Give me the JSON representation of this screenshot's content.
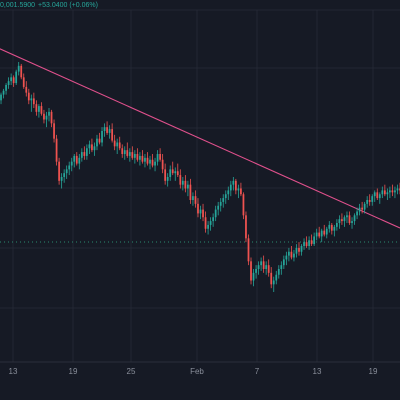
{
  "header": {
    "ohlc_fragment": "0,001.5900",
    "change_text": "+53.0400 (+0.06%)"
  },
  "colors": {
    "background": "#161a25",
    "grid": "#232733",
    "up": "#26a69a",
    "down": "#ef5350",
    "trendline": "#e0508c",
    "dotted_price_line": "#2a8a6e",
    "axis_text": "#8a8f9b",
    "axis_separator": "#2b2f3a"
  },
  "chart_data": {
    "type": "candlestick",
    "x_ticks": [
      "13",
      "19",
      "25",
      "Feb",
      "7",
      "13",
      "19"
    ],
    "grid": true,
    "trendline": {
      "start_index": 0,
      "end_index": 159,
      "start_price": 100.0,
      "end_price": 55.0
    },
    "last_price_marker": {
      "dotted": true,
      "price": 47.0
    },
    "candles": [
      [
        93,
        96,
        90,
        94
      ],
      [
        94,
        98,
        92,
        97
      ],
      [
        97,
        100,
        95,
        99
      ],
      [
        99,
        103,
        97,
        102
      ],
      [
        102,
        106,
        100,
        104
      ],
      [
        104,
        108,
        102,
        106
      ],
      [
        106,
        107,
        101,
        103
      ],
      [
        103,
        110,
        102,
        109
      ],
      [
        109,
        114,
        107,
        112
      ],
      [
        112,
        113,
        105,
        106
      ],
      [
        106,
        108,
        100,
        101
      ],
      [
        101,
        104,
        96,
        98
      ],
      [
        98,
        100,
        92,
        94
      ],
      [
        94,
        97,
        88,
        95
      ],
      [
        95,
        98,
        90,
        92
      ],
      [
        92,
        94,
        86,
        88
      ],
      [
        88,
        92,
        85,
        91
      ],
      [
        91,
        93,
        86,
        87
      ],
      [
        87,
        89,
        82,
        84
      ],
      [
        84,
        88,
        80,
        86
      ],
      [
        86,
        90,
        83,
        88
      ],
      [
        88,
        89,
        80,
        82
      ],
      [
        82,
        84,
        72,
        74
      ],
      [
        74,
        76,
        60,
        62
      ],
      [
        62,
        64,
        50,
        52
      ],
      [
        52,
        56,
        48,
        54
      ],
      [
        54,
        58,
        51,
        56
      ],
      [
        56,
        60,
        53,
        58
      ],
      [
        58,
        62,
        55,
        60
      ],
      [
        60,
        64,
        57,
        62
      ],
      [
        62,
        66,
        59,
        65
      ],
      [
        65,
        67,
        60,
        61
      ],
      [
        61,
        66,
        58,
        64
      ],
      [
        64,
        69,
        62,
        67
      ],
      [
        67,
        70,
        63,
        65
      ],
      [
        65,
        71,
        63,
        69
      ],
      [
        69,
        73,
        66,
        71
      ],
      [
        71,
        74,
        67,
        68
      ],
      [
        68,
        72,
        65,
        70
      ],
      [
        70,
        76,
        68,
        74
      ],
      [
        74,
        77,
        71,
        72
      ],
      [
        72,
        80,
        70,
        78
      ],
      [
        78,
        82,
        75,
        80
      ],
      [
        80,
        83,
        76,
        77
      ],
      [
        77,
        81,
        74,
        79
      ],
      [
        79,
        82,
        72,
        73
      ],
      [
        73,
        76,
        68,
        70
      ],
      [
        70,
        74,
        66,
        72
      ],
      [
        72,
        75,
        68,
        69
      ],
      [
        69,
        71,
        64,
        66
      ],
      [
        66,
        70,
        63,
        68
      ],
      [
        68,
        72,
        64,
        65
      ],
      [
        65,
        69,
        62,
        67
      ],
      [
        67,
        70,
        63,
        64
      ],
      [
        64,
        68,
        61,
        66
      ],
      [
        66,
        69,
        62,
        63
      ],
      [
        63,
        67,
        60,
        65
      ],
      [
        65,
        68,
        61,
        62
      ],
      [
        62,
        66,
        59,
        64
      ],
      [
        64,
        67,
        60,
        61
      ],
      [
        61,
        65,
        58,
        63
      ],
      [
        63,
        66,
        59,
        60
      ],
      [
        60,
        64,
        57,
        62
      ],
      [
        62,
        68,
        60,
        66
      ],
      [
        66,
        69,
        62,
        63
      ],
      [
        63,
        66,
        56,
        58
      ],
      [
        58,
        61,
        50,
        52
      ],
      [
        52,
        56,
        49,
        54
      ],
      [
        54,
        60,
        52,
        58
      ],
      [
        58,
        62,
        55,
        56
      ],
      [
        56,
        59,
        52,
        57
      ],
      [
        57,
        61,
        54,
        55
      ],
      [
        55,
        58,
        48,
        50
      ],
      [
        50,
        54,
        47,
        52
      ],
      [
        52,
        55,
        46,
        48
      ],
      [
        48,
        52,
        44,
        50
      ],
      [
        50,
        53,
        40,
        42
      ],
      [
        42,
        46,
        39,
        44
      ],
      [
        44,
        47,
        38,
        40
      ],
      [
        40,
        43,
        33,
        35
      ],
      [
        35,
        39,
        32,
        37
      ],
      [
        37,
        40,
        31,
        33
      ],
      [
        33,
        36,
        25,
        27
      ],
      [
        27,
        31,
        24,
        29
      ],
      [
        29,
        33,
        26,
        31
      ],
      [
        31,
        35,
        28,
        33
      ],
      [
        33,
        39,
        31,
        37
      ],
      [
        37,
        41,
        34,
        39
      ],
      [
        39,
        43,
        36,
        41
      ],
      [
        41,
        45,
        38,
        43
      ],
      [
        43,
        47,
        40,
        45
      ],
      [
        45,
        49,
        42,
        47
      ],
      [
        47,
        52,
        44,
        50
      ],
      [
        50,
        54,
        47,
        52
      ],
      [
        52,
        53,
        45,
        47
      ],
      [
        47,
        50,
        43,
        48
      ],
      [
        48,
        51,
        44,
        45
      ],
      [
        45,
        46,
        32,
        34
      ],
      [
        34,
        36,
        20,
        22
      ],
      [
        22,
        24,
        8,
        10
      ],
      [
        10,
        12,
        -2,
        0
      ],
      [
        0,
        6,
        -3,
        4
      ],
      [
        4,
        8,
        1,
        6
      ],
      [
        6,
        10,
        3,
        8
      ],
      [
        8,
        12,
        5,
        10
      ],
      [
        10,
        13,
        4,
        6
      ],
      [
        6,
        10,
        3,
        8
      ],
      [
        8,
        11,
        2,
        4
      ],
      [
        4,
        7,
        -4,
        -2
      ],
      [
        -2,
        2,
        -6,
        0
      ],
      [
        0,
        5,
        -2,
        3
      ],
      [
        3,
        8,
        1,
        6
      ],
      [
        6,
        10,
        3,
        8
      ],
      [
        8,
        13,
        6,
        11
      ],
      [
        11,
        15,
        8,
        13
      ],
      [
        13,
        17,
        10,
        15
      ],
      [
        15,
        18,
        11,
        12
      ],
      [
        12,
        16,
        10,
        14
      ],
      [
        14,
        19,
        12,
        17
      ],
      [
        17,
        20,
        13,
        15
      ],
      [
        15,
        19,
        13,
        18
      ],
      [
        18,
        22,
        16,
        20
      ],
      [
        20,
        23,
        17,
        18
      ],
      [
        18,
        23,
        16,
        21
      ],
      [
        21,
        24,
        18,
        19
      ],
      [
        19,
        25,
        18,
        23
      ],
      [
        23,
        27,
        21,
        25
      ],
      [
        25,
        28,
        22,
        23
      ],
      [
        23,
        27,
        20,
        26
      ],
      [
        26,
        29,
        23,
        24
      ],
      [
        24,
        28,
        22,
        27
      ],
      [
        27,
        31,
        25,
        29
      ],
      [
        29,
        30,
        24,
        26
      ],
      [
        26,
        29,
        23,
        28
      ],
      [
        28,
        32,
        26,
        30
      ],
      [
        30,
        34,
        27,
        32
      ],
      [
        32,
        35,
        29,
        31
      ],
      [
        31,
        34,
        28,
        33
      ],
      [
        33,
        36,
        30,
        34
      ],
      [
        34,
        36,
        29,
        30
      ],
      [
        30,
        33,
        27,
        31
      ],
      [
        31,
        35,
        29,
        34
      ],
      [
        34,
        38,
        32,
        36
      ],
      [
        36,
        40,
        34,
        38
      ],
      [
        38,
        41,
        35,
        37
      ],
      [
        37,
        41,
        35,
        40
      ],
      [
        40,
        44,
        38,
        42
      ],
      [
        42,
        45,
        39,
        41
      ],
      [
        41,
        45,
        39,
        44
      ],
      [
        44,
        47,
        41,
        46
      ],
      [
        46,
        48,
        42,
        43
      ],
      [
        43,
        46,
        40,
        45
      ],
      [
        45,
        49,
        43,
        47
      ],
      [
        47,
        50,
        44,
        45
      ],
      [
        45,
        48,
        42,
        46
      ],
      [
        46,
        49,
        43,
        47
      ],
      [
        47,
        50,
        44,
        46
      ],
      [
        46,
        49,
        43,
        47
      ],
      [
        47,
        50,
        45,
        48
      ],
      [
        48,
        51,
        45,
        47
      ]
    ]
  }
}
